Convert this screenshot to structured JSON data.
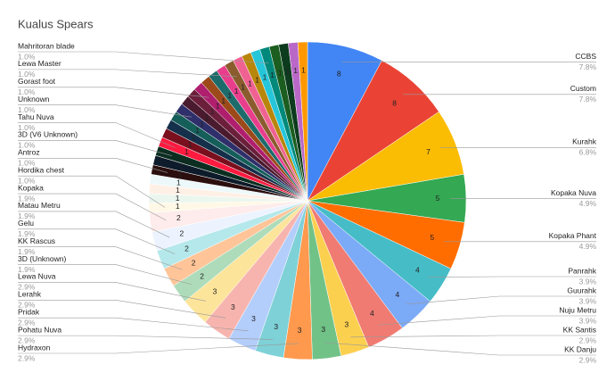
{
  "chart_data": {
    "type": "pie",
    "title": "Kualus Spears",
    "categories": [
      "CCBS",
      "Custom",
      "Kurahk",
      "Kopaka Nuva",
      "Kopaka Phant",
      "Panrahk",
      "Guurahk",
      "Nuju Metru",
      "KK Santis",
      "KK Danju",
      "Hydraxon",
      "Pohatu Nuva",
      "Pridak",
      "Lerahk",
      "Lewa Nuva",
      "3D (Unknown)",
      "KK Rascus",
      "Gelu",
      "Matau Metru",
      "Kopaka",
      "Hordika chest",
      null,
      null,
      null,
      "Antroz",
      null,
      "3D (V6 Unknown)",
      "Tahu Nuva",
      null,
      null,
      null,
      "Unknown",
      null,
      null,
      "Gorast foot",
      null,
      null,
      null,
      "Lewa Master",
      null,
      null,
      null,
      "Mahritoran blade",
      null,
      null,
      null,
      null
    ],
    "values": [
      8,
      8,
      7,
      5,
      5,
      4,
      4,
      4,
      3,
      3,
      3,
      3,
      3,
      3,
      3,
      2,
      2,
      2,
      2,
      2,
      1,
      1,
      1,
      1,
      1,
      1,
      1,
      1,
      1,
      1,
      1,
      1,
      1,
      1,
      1,
      1,
      1,
      1,
      1,
      1,
      1,
      1,
      1,
      1,
      1,
      1,
      1
    ],
    "percent_labels": [
      "7.8%",
      "7.8%",
      "6.8%",
      "4.9%",
      "4.9%",
      "3.9%",
      "3.9%",
      "3.9%",
      "2.9%",
      "2.9%",
      "2.9%",
      "2.9%",
      "2.9%",
      "2.9%",
      "2.9%",
      "1.9%",
      "1.9%",
      "1.9%",
      "1.9%",
      "1.9%",
      "1.0%",
      null,
      null,
      null,
      "1.0%",
      null,
      "1.0%",
      "1.0%",
      null,
      null,
      null,
      "1.0%",
      null,
      null,
      "1.0%",
      null,
      null,
      null,
      "1.0%",
      null,
      null,
      null,
      "1.0%",
      null,
      null,
      null,
      null
    ],
    "colors": [
      "#4285f4",
      "#ea4335",
      "#fbbc04",
      "#34a853",
      "#ff6d01",
      "#46bdc6",
      "#7baaf7",
      "#f07b72",
      "#fcd04f",
      "#71c287",
      "#ff994d",
      "#7ed1d7",
      "#b3cefb",
      "#f7b4ae",
      "#fde49b",
      "#aedcba",
      "#ffc599",
      "#b5e8eb",
      "#ecf3fe",
      "#fdeceb",
      "#fff8e6",
      "#ebf6ee",
      "#fff0e6",
      "#ecf8f9",
      "#2b0f0f",
      "#0d1b2a",
      "#0b2e20",
      "#ff1a40",
      "#7a0f1e",
      "#14304a",
      "#155e5a",
      "#2f2f6b",
      "#4a1a2e",
      "#6b1f3a",
      "#b01e6e",
      "#9c4a1a",
      "#1e6b6b",
      "#e83e8c",
      "#8a5c2e",
      "#f06292",
      "#b8860b",
      "#26c6da",
      "#00897b",
      "#1b5e20",
      "#0d3b1e",
      "#ba68c8",
      "#ff9800"
    ]
  }
}
